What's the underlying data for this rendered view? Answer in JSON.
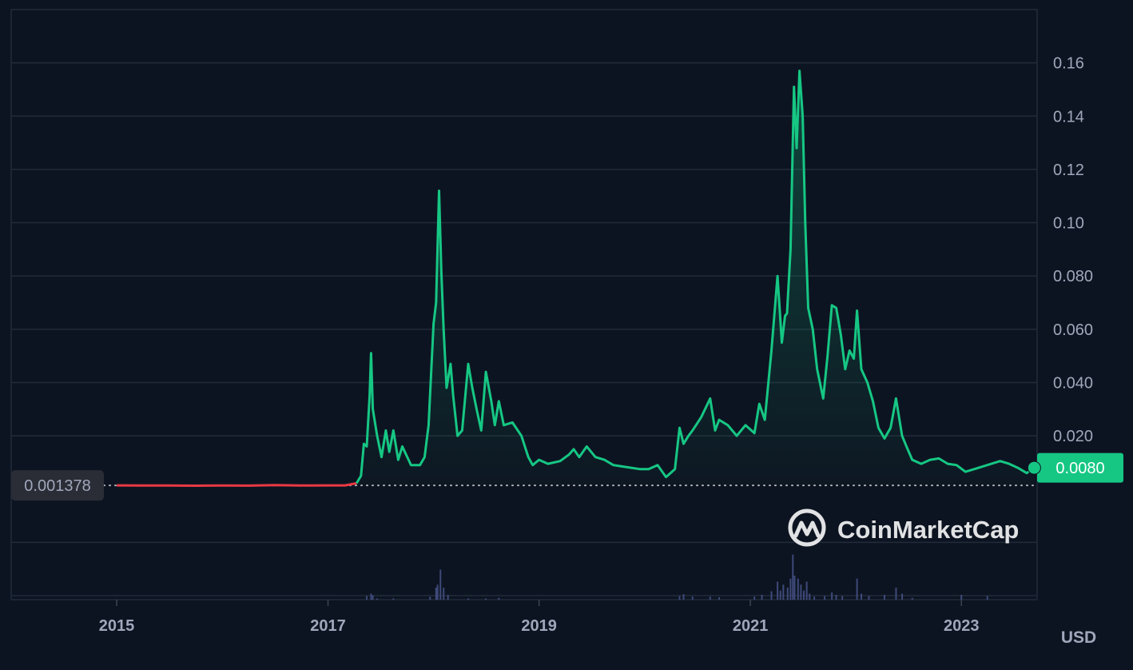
{
  "chart_data": {
    "type": "area",
    "currency": "USD",
    "x_ticks": [
      "2015",
      "2017",
      "2019",
      "2021",
      "2023"
    ],
    "y_ticks": [
      "0.020",
      "0.040",
      "0.060",
      "0.080",
      "0.10",
      "0.12",
      "0.14",
      "0.16"
    ],
    "ylim": [
      -0.0415,
      0.18
    ],
    "xlim": [
      "2014-01-01",
      "2023-09-20"
    ],
    "grid": true,
    "baseline_value": 0.001378,
    "baseline_label": "0.001378",
    "current_value": 0.008,
    "current_label": "0.0080",
    "watermark": "CoinMarketCap",
    "colors": {
      "up": "#16c784",
      "down": "#ea3943",
      "background": "#0d1421",
      "grid": "#222b3a",
      "volume": "#4a5690"
    },
    "series": [
      {
        "values": [
          [
            "2015-01-01",
            0.00138
          ],
          [
            "2015-04-01",
            0.00132
          ],
          [
            "2015-07-01",
            0.00135
          ],
          [
            "2015-10-01",
            0.00128
          ],
          [
            "2016-01-01",
            0.00137
          ],
          [
            "2016-04-01",
            0.0013
          ],
          [
            "2016-07-01",
            0.0015
          ],
          [
            "2016-10-01",
            0.00135
          ],
          [
            "2017-01-01",
            0.00138
          ],
          [
            "2017-03-01",
            0.0014
          ],
          [
            "2017-04-10",
            0.0022
          ],
          [
            "2017-04-25",
            0.005
          ],
          [
            "2017-05-05",
            0.017
          ],
          [
            "2017-05-15",
            0.016
          ],
          [
            "2017-05-25",
            0.035
          ],
          [
            "2017-05-30",
            0.051
          ],
          [
            "2017-06-05",
            0.03
          ],
          [
            "2017-06-20",
            0.02
          ],
          [
            "2017-07-05",
            0.012
          ],
          [
            "2017-07-20",
            0.022
          ],
          [
            "2017-08-01",
            0.014
          ],
          [
            "2017-08-15",
            0.022
          ],
          [
            "2017-09-01",
            0.011
          ],
          [
            "2017-09-15",
            0.016
          ],
          [
            "2017-10-15",
            0.009
          ],
          [
            "2017-11-15",
            0.009
          ],
          [
            "2017-12-01",
            0.012
          ],
          [
            "2017-12-15",
            0.024
          ],
          [
            "2018-01-01",
            0.062
          ],
          [
            "2018-01-10",
            0.07
          ],
          [
            "2018-01-20",
            0.112
          ],
          [
            "2018-01-28",
            0.082
          ],
          [
            "2018-02-05",
            0.06
          ],
          [
            "2018-02-15",
            0.038
          ],
          [
            "2018-03-01",
            0.047
          ],
          [
            "2018-03-10",
            0.035
          ],
          [
            "2018-03-25",
            0.02
          ],
          [
            "2018-04-10",
            0.022
          ],
          [
            "2018-05-01",
            0.047
          ],
          [
            "2018-05-15",
            0.038
          ],
          [
            "2018-05-30",
            0.03
          ],
          [
            "2018-06-15",
            0.022
          ],
          [
            "2018-07-01",
            0.044
          ],
          [
            "2018-07-20",
            0.033
          ],
          [
            "2018-08-01",
            0.024
          ],
          [
            "2018-08-15",
            0.033
          ],
          [
            "2018-09-01",
            0.024
          ],
          [
            "2018-10-01",
            0.025
          ],
          [
            "2018-11-01",
            0.02
          ],
          [
            "2018-11-25",
            0.012
          ],
          [
            "2018-12-10",
            0.009
          ],
          [
            "2019-01-01",
            0.011
          ],
          [
            "2019-02-01",
            0.0095
          ],
          [
            "2019-03-15",
            0.0105
          ],
          [
            "2019-04-15",
            0.013
          ],
          [
            "2019-05-01",
            0.015
          ],
          [
            "2019-05-20",
            0.012
          ],
          [
            "2019-06-15",
            0.016
          ],
          [
            "2019-07-15",
            0.012
          ],
          [
            "2019-08-15",
            0.011
          ],
          [
            "2019-09-15",
            0.009
          ],
          [
            "2019-10-15",
            0.0085
          ],
          [
            "2019-12-15",
            0.0075
          ],
          [
            "2020-01-15",
            0.0075
          ],
          [
            "2020-02-15",
            0.009
          ],
          [
            "2020-03-15",
            0.0045
          ],
          [
            "2020-04-15",
            0.0075
          ],
          [
            "2020-05-01",
            0.023
          ],
          [
            "2020-05-15",
            0.017
          ],
          [
            "2020-06-01",
            0.02
          ],
          [
            "2020-06-15",
            0.022
          ],
          [
            "2020-07-15",
            0.027
          ],
          [
            "2020-08-15",
            0.034
          ],
          [
            "2020-09-01",
            0.022
          ],
          [
            "2020-09-15",
            0.026
          ],
          [
            "2020-10-15",
            0.024
          ],
          [
            "2020-11-15",
            0.02
          ],
          [
            "2020-12-15",
            0.024
          ],
          [
            "2021-01-15",
            0.021
          ],
          [
            "2021-02-01",
            0.032
          ],
          [
            "2021-02-20",
            0.026
          ],
          [
            "2021-03-15",
            0.052
          ],
          [
            "2021-04-05",
            0.08
          ],
          [
            "2021-04-20",
            0.055
          ],
          [
            "2021-05-01",
            0.065
          ],
          [
            "2021-05-08",
            0.066
          ],
          [
            "2021-05-20",
            0.09
          ],
          [
            "2021-06-01",
            0.151
          ],
          [
            "2021-06-10",
            0.128
          ],
          [
            "2021-06-20",
            0.157
          ],
          [
            "2021-07-01",
            0.14
          ],
          [
            "2021-07-10",
            0.1
          ],
          [
            "2021-07-20",
            0.068
          ],
          [
            "2021-08-05",
            0.06
          ],
          [
            "2021-08-20",
            0.045
          ],
          [
            "2021-09-10",
            0.034
          ],
          [
            "2021-09-25",
            0.05
          ],
          [
            "2021-10-10",
            0.069
          ],
          [
            "2021-10-25",
            0.068
          ],
          [
            "2021-11-10",
            0.058
          ],
          [
            "2021-11-25",
            0.045
          ],
          [
            "2021-12-10",
            0.052
          ],
          [
            "2021-12-25",
            0.049
          ],
          [
            "2022-01-05",
            0.067
          ],
          [
            "2022-01-20",
            0.045
          ],
          [
            "2022-02-10",
            0.04
          ],
          [
            "2022-03-01",
            0.033
          ],
          [
            "2022-03-20",
            0.023
          ],
          [
            "2022-04-10",
            0.019
          ],
          [
            "2022-05-01",
            0.023
          ],
          [
            "2022-05-20",
            0.034
          ],
          [
            "2022-06-10",
            0.02
          ],
          [
            "2022-06-25",
            0.016
          ],
          [
            "2022-07-15",
            0.011
          ],
          [
            "2022-08-15",
            0.0095
          ],
          [
            "2022-09-15",
            0.011
          ],
          [
            "2022-10-15",
            0.0115
          ],
          [
            "2022-11-15",
            0.0095
          ],
          [
            "2022-12-15",
            0.009
          ],
          [
            "2023-01-15",
            0.0065
          ],
          [
            "2023-02-15",
            0.0075
          ],
          [
            "2023-04-15",
            0.0095
          ],
          [
            "2023-05-15",
            0.0105
          ],
          [
            "2023-06-15",
            0.0095
          ],
          [
            "2023-07-15",
            0.008
          ],
          [
            "2023-08-15",
            0.006
          ],
          [
            "2023-09-10",
            0.008
          ]
        ]
      }
    ],
    "volume": [
      [
        "2017-05-15",
        0.06
      ],
      [
        "2017-05-30",
        0.1
      ],
      [
        "2017-06-05",
        0.07
      ],
      [
        "2017-06-20",
        0.02
      ],
      [
        "2017-08-15",
        0.02
      ],
      [
        "2017-12-20",
        0.05
      ],
      [
        "2018-01-10",
        0.2
      ],
      [
        "2018-01-15",
        0.25
      ],
      [
        "2018-01-25",
        0.5
      ],
      [
        "2018-02-05",
        0.2
      ],
      [
        "2018-02-20",
        0.08
      ],
      [
        "2018-05-01",
        0.02
      ],
      [
        "2018-07-01",
        0.02
      ],
      [
        "2018-08-15",
        0.03
      ],
      [
        "2020-05-01",
        0.06
      ],
      [
        "2020-05-15",
        0.09
      ],
      [
        "2020-06-15",
        0.05
      ],
      [
        "2020-08-15",
        0.05
      ],
      [
        "2020-09-15",
        0.04
      ],
      [
        "2021-01-15",
        0.05
      ],
      [
        "2021-02-10",
        0.08
      ],
      [
        "2021-03-15",
        0.14
      ],
      [
        "2021-04-05",
        0.3
      ],
      [
        "2021-04-15",
        0.15
      ],
      [
        "2021-04-25",
        0.25
      ],
      [
        "2021-05-10",
        0.2
      ],
      [
        "2021-05-20",
        0.35
      ],
      [
        "2021-05-28",
        0.75
      ],
      [
        "2021-06-03",
        0.4
      ],
      [
        "2021-06-15",
        0.35
      ],
      [
        "2021-06-25",
        0.25
      ],
      [
        "2021-07-05",
        0.15
      ],
      [
        "2021-07-15",
        0.3
      ],
      [
        "2021-07-25",
        0.1
      ],
      [
        "2021-08-10",
        0.05
      ],
      [
        "2021-09-15",
        0.06
      ],
      [
        "2021-10-10",
        0.12
      ],
      [
        "2021-10-25",
        0.08
      ],
      [
        "2021-11-15",
        0.06
      ],
      [
        "2022-01-05",
        0.35
      ],
      [
        "2022-01-20",
        0.1
      ],
      [
        "2022-02-15",
        0.06
      ],
      [
        "2022-04-10",
        0.08
      ],
      [
        "2022-05-20",
        0.2
      ],
      [
        "2022-06-10",
        0.1
      ],
      [
        "2022-07-15",
        0.03
      ],
      [
        "2023-01-01",
        0.08
      ],
      [
        "2023-04-01",
        0.06
      ]
    ]
  }
}
